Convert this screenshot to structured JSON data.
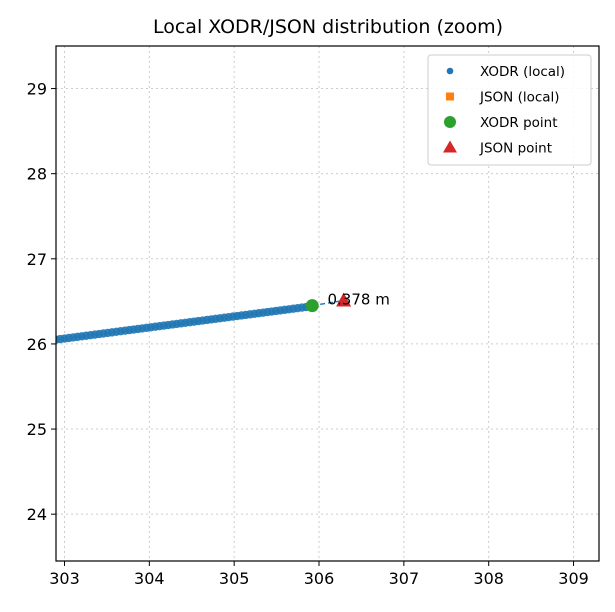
{
  "chart_data": {
    "type": "scatter",
    "title": "Local XODR/JSON distribution (zoom)",
    "xlabel": "",
    "ylabel": "",
    "xlim": [
      302.9,
      309.3
    ],
    "ylim": [
      23.45,
      29.5
    ],
    "xticks": [
      303,
      304,
      305,
      306,
      307,
      308,
      309
    ],
    "yticks": [
      24,
      25,
      26,
      27,
      28,
      29
    ],
    "grid": true,
    "legend_position": "top-right",
    "series": [
      {
        "name": "XODR (local)",
        "marker": "circle-small",
        "color": "#1f77b4",
        "line": {
          "x": [
            302.9,
            305.9
          ],
          "y": [
            26.05,
            26.44
          ]
        },
        "count": 60
      },
      {
        "name": "JSON (local)",
        "marker": "square",
        "color": "#ff7f0e",
        "x": [],
        "y": []
      },
      {
        "name": "XODR point",
        "marker": "circle",
        "color": "#2ca02c",
        "x": [
          305.92
        ],
        "y": [
          26.45
        ]
      },
      {
        "name": "JSON point",
        "marker": "triangle",
        "color": "#d62728",
        "x": [
          306.29
        ],
        "y": [
          26.51
        ]
      }
    ],
    "connector": {
      "from": [
        305.92,
        26.45
      ],
      "to": [
        306.29,
        26.51
      ],
      "color": "#1f77b4"
    },
    "annotation": {
      "text": "0.378 m",
      "x": 306.1,
      "y": 26.51
    }
  }
}
